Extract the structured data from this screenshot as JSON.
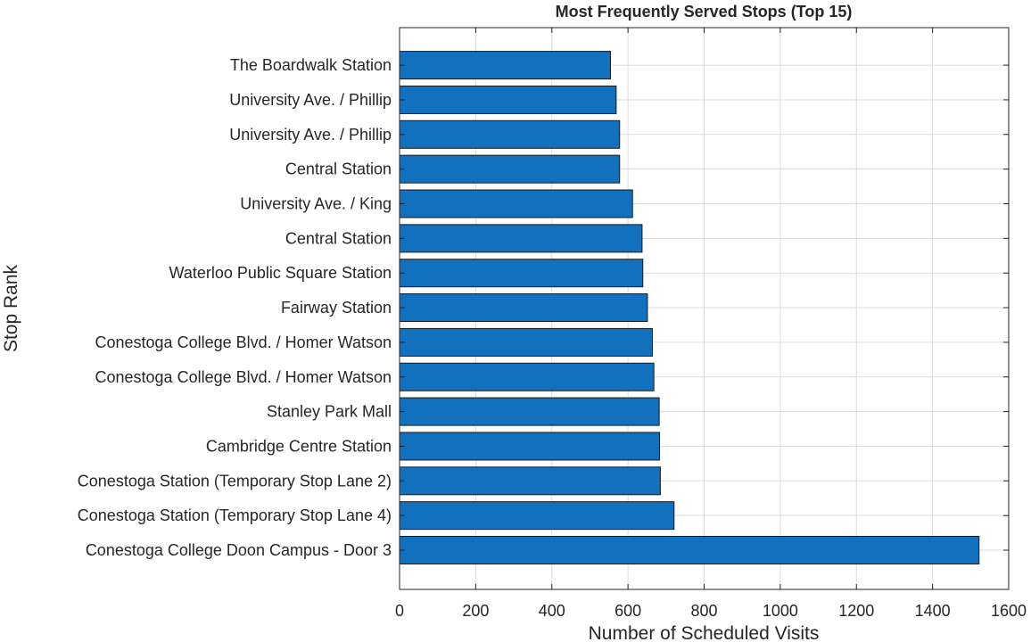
{
  "chart_data": {
    "type": "bar",
    "orientation": "horizontal",
    "title": "Most Frequently Served Stops (Top 15)",
    "xlabel": "Number of Scheduled Visits",
    "ylabel": "Stop Rank",
    "xlim": [
      0,
      1600
    ],
    "xticks": [
      "0",
      "200",
      "400",
      "600",
      "800",
      "1000",
      "1200",
      "1400",
      "1600"
    ],
    "grid": true,
    "bar_color": "#1271bf",
    "categories": [
      "Conestoga College Doon Campus - Door 3",
      "Conestoga Station (Temporary Stop Lane 4)",
      "Conestoga Station (Temporary Stop Lane 2)",
      "Cambridge Centre Station",
      "Stanley Park Mall",
      "Conestoga College Blvd. / Homer Watson",
      "Conestoga College Blvd. / Homer Watson",
      "Fairway Station",
      "Waterloo Public Square Station",
      "Central Station",
      "University Ave. / King",
      "Central Station",
      "University Ave. / Phillip",
      "University Ave. / Phillip",
      "The Boardwalk Station"
    ],
    "values": [
      1522,
      721,
      685,
      683,
      682,
      668,
      664,
      651,
      639,
      637,
      612,
      578,
      578,
      569,
      554
    ]
  }
}
